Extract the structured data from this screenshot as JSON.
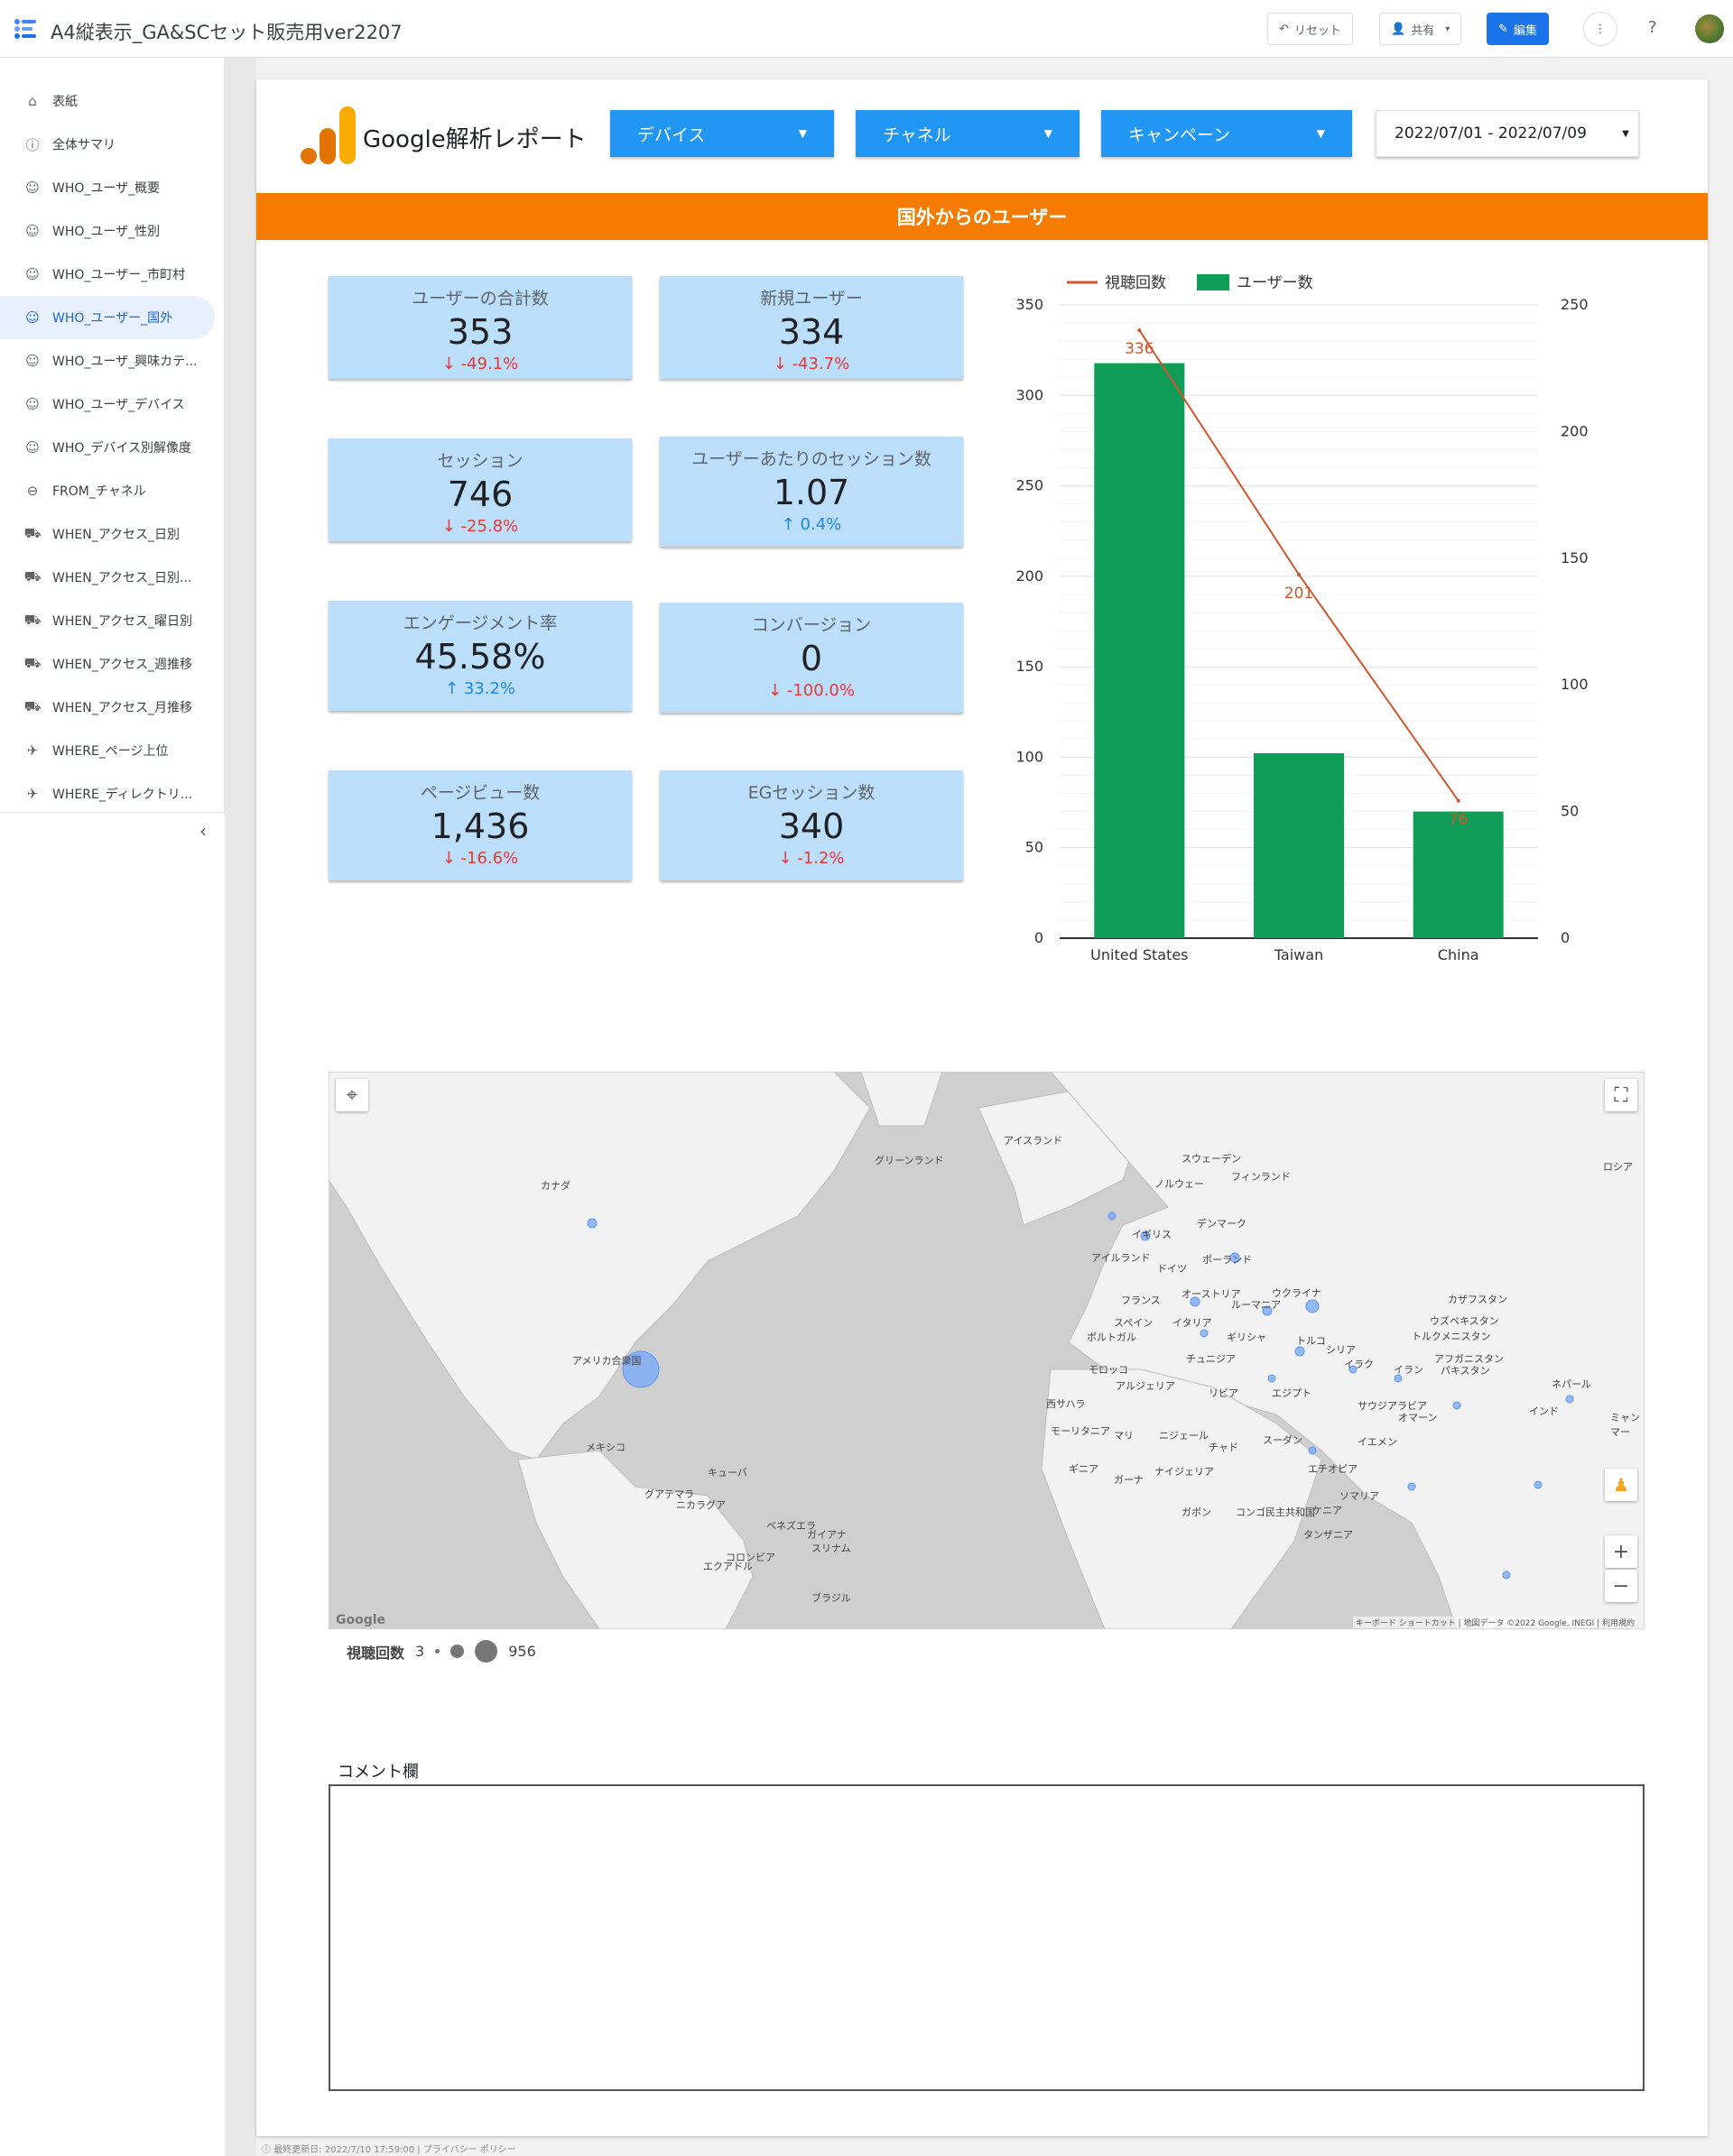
{
  "app": {
    "title": "A4縦表示_GA&SCセット販売用ver2207",
    "reset_label": "リセット",
    "share_label": "共有",
    "edit_label": "編集"
  },
  "sidebar": {
    "items": [
      {
        "label": "表紙",
        "icon": "home-icon",
        "glyph": "⌂"
      },
      {
        "label": "全体サマリ",
        "icon": "info-icon",
        "glyph": "ⓘ"
      },
      {
        "label": "WHO_ユーザ_概要",
        "icon": "face-icon",
        "glyph": "☺"
      },
      {
        "label": "WHO_ユーザ_性別",
        "icon": "face-icon",
        "glyph": "☺"
      },
      {
        "label": "WHO_ユーザー_市町村",
        "icon": "face-icon",
        "glyph": "☺"
      },
      {
        "label": "WHO_ユーザー_国外",
        "icon": "face-icon",
        "glyph": "☺",
        "active": true
      },
      {
        "label": "WHO_ユーザ_興味カテ...",
        "icon": "face-icon",
        "glyph": "☺"
      },
      {
        "label": "WHO_ユーザ_デバイス",
        "icon": "face-icon",
        "glyph": "☺"
      },
      {
        "label": "WHO_デバイス別解像度",
        "icon": "face-icon",
        "glyph": "☺"
      },
      {
        "label": "FROM_チャネル",
        "icon": "link-icon",
        "glyph": "⊖"
      },
      {
        "label": "WHEN_アクセス_日別",
        "icon": "truck-icon",
        "glyph": "⛟"
      },
      {
        "label": "WHEN_アクセス_日別...",
        "icon": "truck-icon",
        "glyph": "⛟"
      },
      {
        "label": "WHEN_アクセス_曜日別",
        "icon": "truck-icon",
        "glyph": "⛟"
      },
      {
        "label": "WHEN_アクセス_週推移",
        "icon": "truck-icon",
        "glyph": "⛟"
      },
      {
        "label": "WHEN_アクセス_月推移",
        "icon": "truck-icon",
        "glyph": "⛟"
      },
      {
        "label": "WHERE_ページ上位",
        "icon": "airplane-icon",
        "glyph": "✈"
      },
      {
        "label": "WHERE_ディレクトリ...",
        "icon": "airplane-icon",
        "glyph": "✈"
      }
    ]
  },
  "report": {
    "title": "Google解析レポート",
    "filters": [
      "デバイス",
      "チャネル",
      "キャンペーン"
    ],
    "date_range": "2022/07/01 - 2022/07/09",
    "banner": "国外からのユーザー"
  },
  "kpis": [
    {
      "label": "ユーザーの合計数",
      "value": "353",
      "change": "-49.1%",
      "dir": "down"
    },
    {
      "label": "新規ユーザー",
      "value": "334",
      "change": "-43.7%",
      "dir": "down"
    },
    {
      "label": "セッション",
      "value": "746",
      "change": "-25.8%",
      "dir": "down"
    },
    {
      "label": "ユーザーあたりのセッション数",
      "value": "1.07",
      "change": "0.4%",
      "dir": "up"
    },
    {
      "label": "エンゲージメント率",
      "value": "45.58%",
      "change": "33.2%",
      "dir": "up"
    },
    {
      "label": "コンバージョン",
      "value": "0",
      "change": "-100.0%",
      "dir": "down"
    },
    {
      "label": "ページビュー数",
      "value": "1,436",
      "change": "-16.6%",
      "dir": "down"
    },
    {
      "label": "EGセッション数",
      "value": "340",
      "change": "-1.2%",
      "dir": "down"
    }
  ],
  "chart_data": {
    "type": "bar",
    "categories": [
      "United States",
      "Taiwan",
      "China"
    ],
    "series": [
      {
        "name": "ユーザー数",
        "type": "bar",
        "axis": "right",
        "values": [
          227,
          73,
          50
        ],
        "color": "#0f9d58"
      },
      {
        "name": "視聴回数",
        "type": "line",
        "axis": "left",
        "values": [
          336,
          201,
          76
        ],
        "color": "#d4552b",
        "labels": [
          "336",
          "201",
          "76"
        ]
      }
    ],
    "left_axis": {
      "ticks": [
        "0",
        "50",
        "100",
        "150",
        "200",
        "250",
        "300",
        "350"
      ],
      "range": [
        0,
        350
      ]
    },
    "right_axis": {
      "ticks": [
        "0",
        "50",
        "100",
        "150",
        "200",
        "250"
      ],
      "range": [
        0,
        250
      ]
    },
    "legend": "top-left",
    "grid": true
  },
  "map": {
    "labels": [
      "カナダ",
      "アメリカ合衆国",
      "メキシコ",
      "キューバ",
      "グアテマラ",
      "ニカラグア",
      "コロンビア",
      "ベネズエラ",
      "ガイアナ",
      "スリナム",
      "エクアドル",
      "ブラジル",
      "グリーンランド",
      "アイスランド",
      "スウェーデン",
      "フィンランド",
      "ノルウェー",
      "デンマーク",
      "イギリス",
      "アイルランド",
      "ドイツ",
      "ポーランド",
      "ウクライナ",
      "フランス",
      "オーストリア",
      "ルーマニア",
      "イタリア",
      "スペイン",
      "ポルトガル",
      "ギリシャ",
      "トルコ",
      "チュニジア",
      "モロッコ",
      "アルジェリア",
      "リビア",
      "エジプト",
      "シリア",
      "イラク",
      "イラン",
      "サウジアラビア",
      "オマーン",
      "イエメン",
      "カザフスタン",
      "ウズベキスタン",
      "トルクメニスタン",
      "アフガニスタン",
      "パキスタン",
      "インド",
      "ネパール",
      "ロシア",
      "西サハラ",
      "モーリタニア",
      "マリ",
      "ニジェール",
      "チャド",
      "スーダン",
      "エチオピア",
      "ソマリア",
      "ケニア",
      "タンザニア",
      "ギニア",
      "ガーナ",
      "ナイジェリア",
      "ガボン",
      "コンゴ民主共和国",
      "ミャンマー"
    ],
    "google_label": "Google",
    "attribution": "キーボード ショートカット | 地図データ ©2022 Google, INEGI | 利用規約",
    "legend_title": "視聴回数",
    "legend_min": "3",
    "legend_max": "956"
  },
  "comment": {
    "label": "コメント欄"
  },
  "footer": "最終更新日: 2022/7/10 17:59:00 | プライバシー ポリシー"
}
